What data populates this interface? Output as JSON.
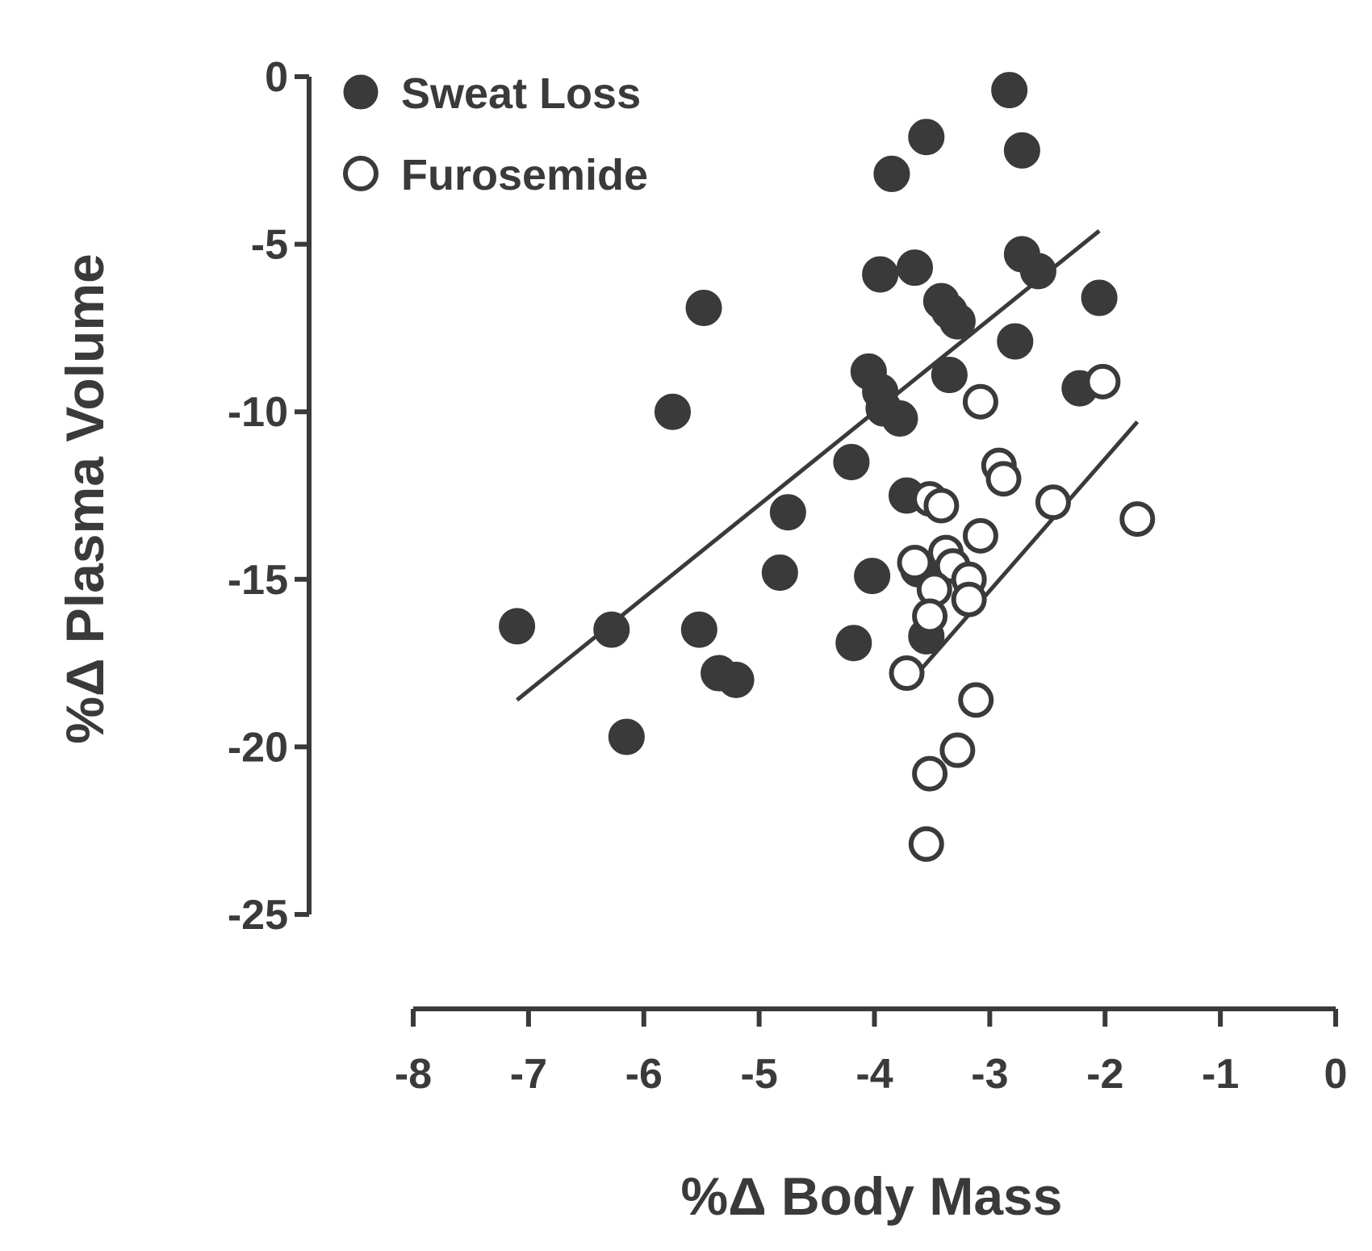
{
  "chart_data": {
    "type": "scatter",
    "title": "",
    "xlabel": "%Δ Body Mass",
    "ylabel": "%Δ Plasma Volume",
    "xlim": [
      -8,
      0
    ],
    "ylim": [
      -25,
      0
    ],
    "x_ticks": [
      -8,
      -7,
      -6,
      -5,
      -4,
      -3,
      -2,
      -1,
      0
    ],
    "x_tick_labels": [
      "-8",
      "-7",
      "-6",
      "-5",
      "-4",
      "-3",
      "-2",
      "-1",
      "0"
    ],
    "y_ticks": [
      0,
      -5,
      -10,
      -15,
      -20,
      -25
    ],
    "y_tick_labels": [
      "0",
      "-5",
      "-10",
      "-15",
      "-20",
      "-25"
    ],
    "grid": false,
    "legend_position": "top-left",
    "colors": {
      "ink": "#3a3a3a",
      "background": "#ffffff"
    },
    "series": [
      {
        "name": "Sweat Loss",
        "marker": "filled-circle",
        "points": [
          {
            "x": -2.83,
            "y": -0.4
          },
          {
            "x": -3.55,
            "y": -1.8
          },
          {
            "x": -2.72,
            "y": -2.2
          },
          {
            "x": -3.85,
            "y": -2.9
          },
          {
            "x": -3.65,
            "y": -5.7
          },
          {
            "x": -3.95,
            "y": -5.9
          },
          {
            "x": -2.72,
            "y": -5.3
          },
          {
            "x": -2.58,
            "y": -5.8
          },
          {
            "x": -2.05,
            "y": -6.6
          },
          {
            "x": -5.48,
            "y": -6.9
          },
          {
            "x": -3.42,
            "y": -6.7
          },
          {
            "x": -3.35,
            "y": -7.0
          },
          {
            "x": -3.28,
            "y": -7.3
          },
          {
            "x": -2.78,
            "y": -7.9
          },
          {
            "x": -4.05,
            "y": -8.8
          },
          {
            "x": -3.95,
            "y": -9.4
          },
          {
            "x": -3.35,
            "y": -8.9
          },
          {
            "x": -2.22,
            "y": -9.3
          },
          {
            "x": -3.92,
            "y": -9.9
          },
          {
            "x": -3.78,
            "y": -10.2
          },
          {
            "x": -5.75,
            "y": -10.0
          },
          {
            "x": -4.2,
            "y": -11.5
          },
          {
            "x": -3.72,
            "y": -12.5
          },
          {
            "x": -4.75,
            "y": -13.0
          },
          {
            "x": -4.82,
            "y": -14.8
          },
          {
            "x": -4.02,
            "y": -14.9
          },
          {
            "x": -3.62,
            "y": -14.7
          },
          {
            "x": -7.1,
            "y": -16.4
          },
          {
            "x": -6.28,
            "y": -16.5
          },
          {
            "x": -5.52,
            "y": -16.5
          },
          {
            "x": -3.55,
            "y": -16.7
          },
          {
            "x": -4.18,
            "y": -16.9
          },
          {
            "x": -5.35,
            "y": -17.8
          },
          {
            "x": -5.2,
            "y": -18.0
          },
          {
            "x": -6.15,
            "y": -19.7
          }
        ]
      },
      {
        "name": "Furosemide",
        "marker": "open-circle",
        "points": [
          {
            "x": -2.02,
            "y": -9.1
          },
          {
            "x": -3.08,
            "y": -9.7
          },
          {
            "x": -2.92,
            "y": -11.6
          },
          {
            "x": -2.88,
            "y": -12.0
          },
          {
            "x": -3.52,
            "y": -12.6
          },
          {
            "x": -3.42,
            "y": -12.8
          },
          {
            "x": -2.45,
            "y": -12.7
          },
          {
            "x": -1.72,
            "y": -13.2
          },
          {
            "x": -3.08,
            "y": -13.7
          },
          {
            "x": -3.65,
            "y": -14.5
          },
          {
            "x": -3.38,
            "y": -14.2
          },
          {
            "x": -3.32,
            "y": -14.6
          },
          {
            "x": -3.18,
            "y": -15.0
          },
          {
            "x": -3.48,
            "y": -15.3
          },
          {
            "x": -3.18,
            "y": -15.6
          },
          {
            "x": -3.52,
            "y": -16.1
          },
          {
            "x": -3.72,
            "y": -17.8
          },
          {
            "x": -3.12,
            "y": -18.6
          },
          {
            "x": -3.28,
            "y": -20.1
          },
          {
            "x": -3.52,
            "y": -20.8
          },
          {
            "x": -3.55,
            "y": -22.9
          }
        ]
      }
    ],
    "fit_lines": [
      {
        "series": "Sweat Loss",
        "x": [
          -7.1,
          -2.05
        ],
        "y": [
          -18.6,
          -4.6
        ]
      },
      {
        "series": "Furosemide",
        "x": [
          -3.65,
          -1.72
        ],
        "y": [
          -17.9,
          -10.3
        ]
      }
    ]
  }
}
